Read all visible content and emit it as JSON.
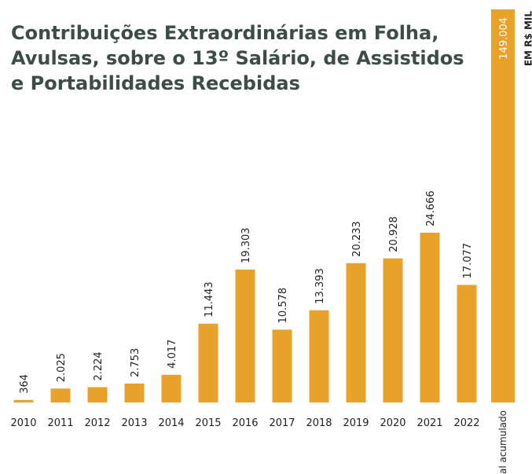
{
  "chart_data": {
    "type": "bar",
    "title": "Contribuições Extraordinárias em Folha, Avulsas, sobre o 13º Salário, de Assistidos e Portabilidades Recebidas",
    "unit_label": "EM R$ MIL",
    "categories": [
      "2010",
      "2011",
      "2012",
      "2013",
      "2014",
      "2015",
      "2016",
      "2017",
      "2018",
      "2019",
      "2020",
      "2021",
      "2022"
    ],
    "values": [
      364,
      2025,
      2224,
      2753,
      4017,
      11443,
      19303,
      10578,
      13393,
      20233,
      20928,
      24666,
      17077
    ],
    "value_labels": [
      "364",
      "2.025",
      "2.224",
      "2.753",
      "4.017",
      "11.443",
      "19.303",
      "10.578",
      "13.393",
      "20.233",
      "20.928",
      "24.666",
      "17.077"
    ],
    "total": {
      "label": "Total acumulado",
      "value": 149004,
      "value_label": "149.004"
    },
    "color": "#e8a22a"
  }
}
